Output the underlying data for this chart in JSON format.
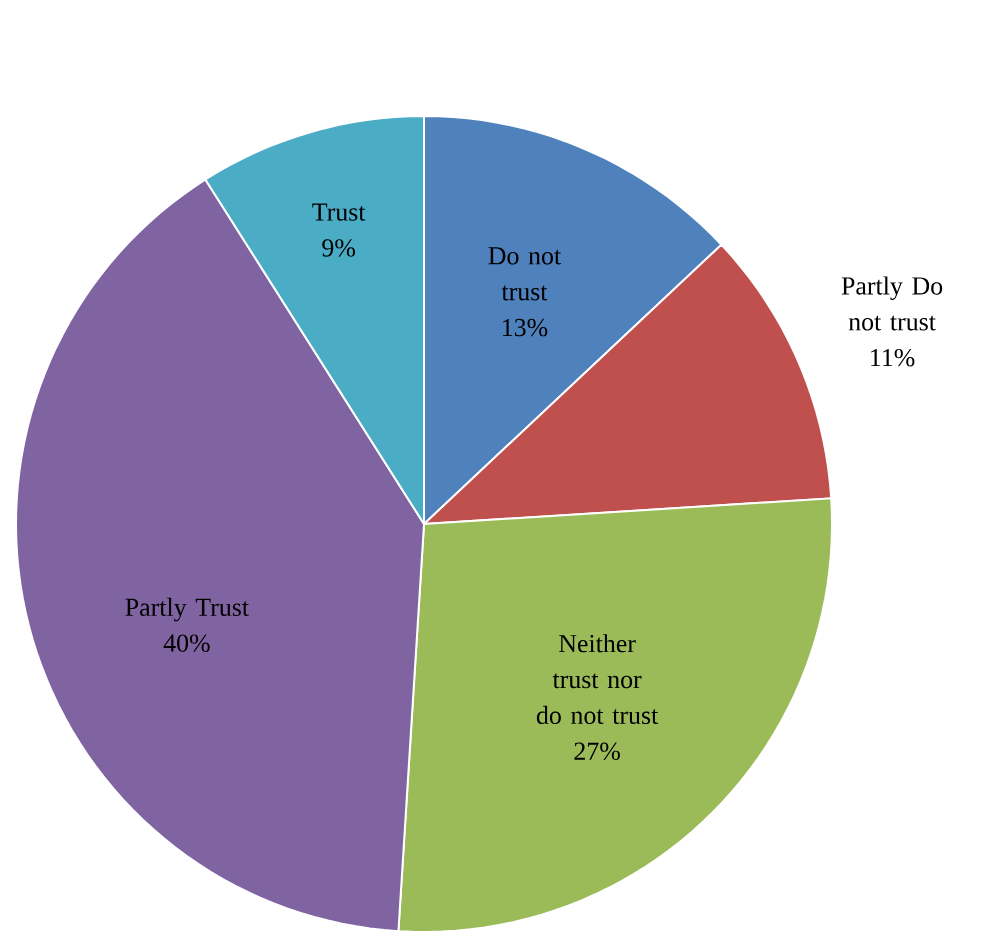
{
  "chart_data": {
    "type": "pie",
    "categories": [
      "Do not trust",
      "Partly Do not trust",
      "Neither trust nor do not trust",
      "Partly Trust",
      "Trust"
    ],
    "values": [
      13,
      11,
      27,
      40,
      9
    ],
    "value_labels": [
      "13%",
      "11%",
      "27%",
      "40%",
      "9%"
    ],
    "colors": [
      "#4f81bd",
      "#c0504d",
      "#9bbb59",
      "#8064a2",
      "#4bacc6"
    ]
  }
}
